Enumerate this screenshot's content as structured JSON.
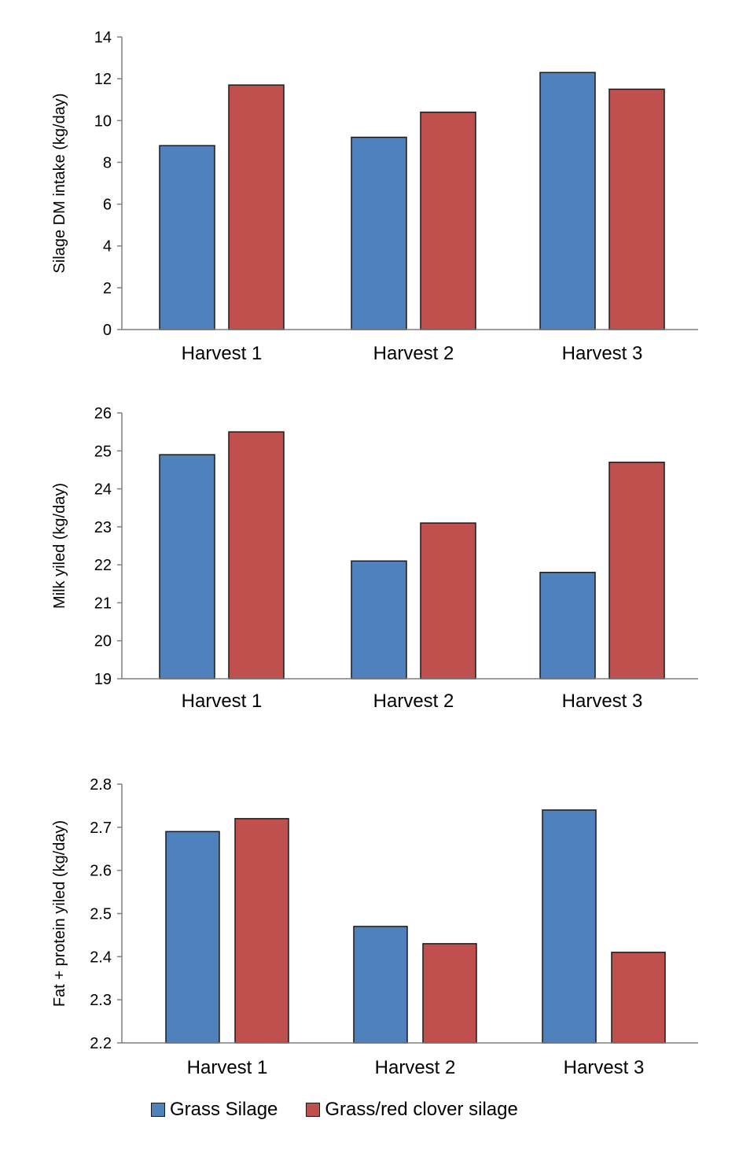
{
  "chart_data": [
    {
      "type": "bar",
      "categories": [
        "Harvest 1",
        "Harvest 2",
        "Harvest 3"
      ],
      "series": [
        {
          "name": "Grass Silage",
          "values": [
            8.8,
            9.2,
            12.3
          ]
        },
        {
          "name": "Grass/red clover silage",
          "values": [
            11.7,
            10.4,
            11.5
          ]
        }
      ],
      "ylabel": "Silage DM intake (kg/day)",
      "ylim": [
        0,
        14
      ],
      "yticks": [
        "0",
        "2",
        "4",
        "6",
        "8",
        "10",
        "12",
        "14"
      ],
      "grid": false
    },
    {
      "type": "bar",
      "categories": [
        "Harvest 1",
        "Harvest 2",
        "Harvest 3"
      ],
      "series": [
        {
          "name": "Grass Silage",
          "values": [
            24.9,
            22.1,
            21.8
          ]
        },
        {
          "name": "Grass/red clover silage",
          "values": [
            25.5,
            23.1,
            24.7
          ]
        }
      ],
      "ylabel": "Milk yiled (kg/day)",
      "ylim": [
        19,
        26
      ],
      "yticks": [
        "19",
        "20",
        "21",
        "22",
        "23",
        "24",
        "25",
        "26"
      ],
      "grid": false
    },
    {
      "type": "bar",
      "categories": [
        "Harvest 1",
        "Harvest 2",
        "Harvest 3"
      ],
      "series": [
        {
          "name": "Grass Silage",
          "values": [
            2.69,
            2.47,
            2.74
          ]
        },
        {
          "name": "Grass/red clover silage",
          "values": [
            2.72,
            2.43,
            2.41
          ]
        }
      ],
      "ylabel": "Fat + protein yiled (kg/day)",
      "ylim": [
        2.2,
        2.8
      ],
      "yticks": [
        "2.2",
        "2.3",
        "2.4",
        "2.5",
        "2.6",
        "2.7",
        "2.8"
      ],
      "grid": false
    }
  ],
  "legend": {
    "position": "bottom",
    "items": [
      {
        "label": "Grass Silage",
        "color": "#4F81BD"
      },
      {
        "label": "Grass/red clover silage",
        "color": "#C0504D"
      }
    ]
  }
}
